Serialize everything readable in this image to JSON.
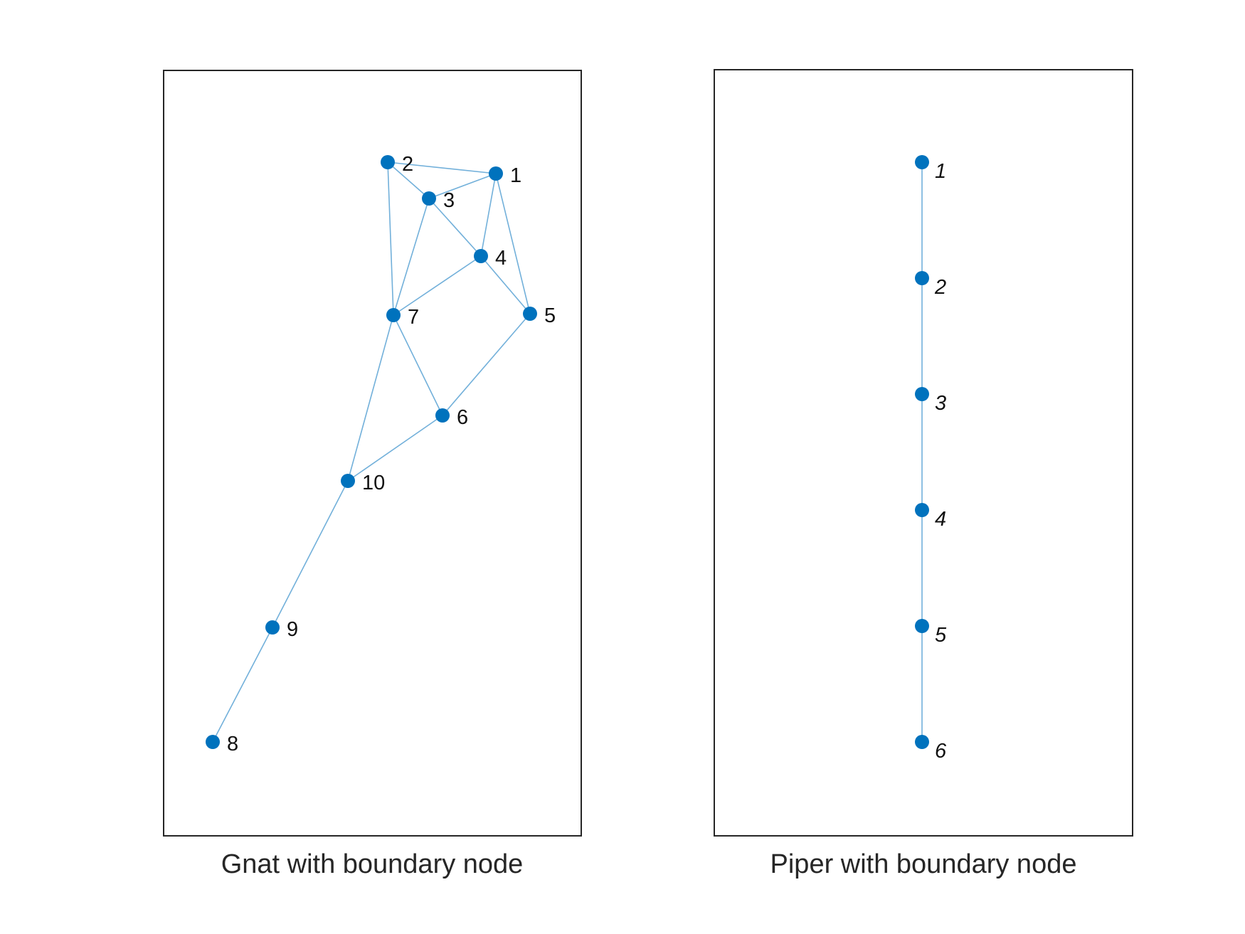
{
  "colors": {
    "node": "#0072bd",
    "edge": "#72b0da",
    "frame": "#262626",
    "text": "#111111"
  },
  "graphs": [
    {
      "caption": "Gnat with boundary node",
      "label_style": "normal",
      "nodes": [
        {
          "id": "1"
        },
        {
          "id": "2"
        },
        {
          "id": "3"
        },
        {
          "id": "4"
        },
        {
          "id": "5"
        },
        {
          "id": "6"
        },
        {
          "id": "7"
        },
        {
          "id": "8"
        },
        {
          "id": "9"
        },
        {
          "id": "10"
        }
      ],
      "edges": [
        [
          "2",
          "1"
        ],
        [
          "2",
          "3"
        ],
        [
          "3",
          "1"
        ],
        [
          "2",
          "7"
        ],
        [
          "3",
          "4"
        ],
        [
          "3",
          "7"
        ],
        [
          "1",
          "4"
        ],
        [
          "1",
          "5"
        ],
        [
          "4",
          "5"
        ],
        [
          "4",
          "7"
        ],
        [
          "7",
          "6"
        ],
        [
          "5",
          "6"
        ],
        [
          "7",
          "10"
        ],
        [
          "6",
          "10"
        ],
        [
          "10",
          "9"
        ],
        [
          "9",
          "8"
        ]
      ]
    },
    {
      "caption": "Piper with boundary node",
      "label_style": "italic",
      "nodes": [
        {
          "id": "1"
        },
        {
          "id": "2"
        },
        {
          "id": "3"
        },
        {
          "id": "4"
        },
        {
          "id": "5"
        },
        {
          "id": "6"
        }
      ],
      "edges": [
        [
          "1",
          "2"
        ],
        [
          "2",
          "3"
        ],
        [
          "3",
          "4"
        ],
        [
          "4",
          "5"
        ],
        [
          "5",
          "6"
        ]
      ]
    }
  ]
}
